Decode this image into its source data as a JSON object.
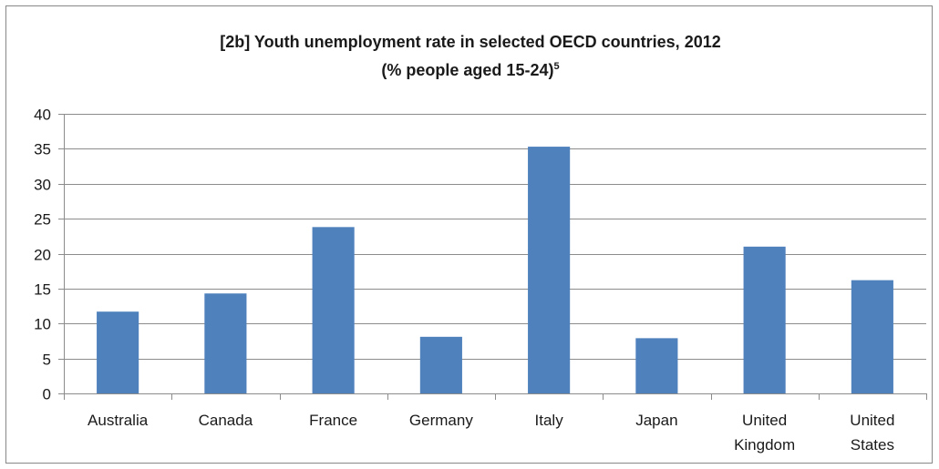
{
  "chart_data": {
    "type": "bar",
    "title": "[2b] Youth unemployment rate in selected OECD countries, 2012",
    "subtitle": "(% people aged 15-24)",
    "subtitle_footnote": "5",
    "categories": [
      [
        "Australia"
      ],
      [
        "Canada"
      ],
      [
        "France"
      ],
      [
        "Germany"
      ],
      [
        "Italy"
      ],
      [
        "Japan"
      ],
      [
        "United",
        "Kingdom"
      ],
      [
        "United",
        "States"
      ]
    ],
    "values": [
      11.7,
      14.3,
      23.8,
      8.1,
      35.3,
      7.9,
      21.0,
      16.2
    ],
    "ylim": [
      0,
      40
    ],
    "yticks": [
      0,
      5,
      10,
      15,
      20,
      25,
      30,
      35,
      40
    ],
    "grid": true,
    "legend": "none",
    "xlabel": "",
    "ylabel": "",
    "bar_color": "#4f81bd",
    "grid_color": "#8c8c8c",
    "axis_color": "#8c8c8c"
  }
}
